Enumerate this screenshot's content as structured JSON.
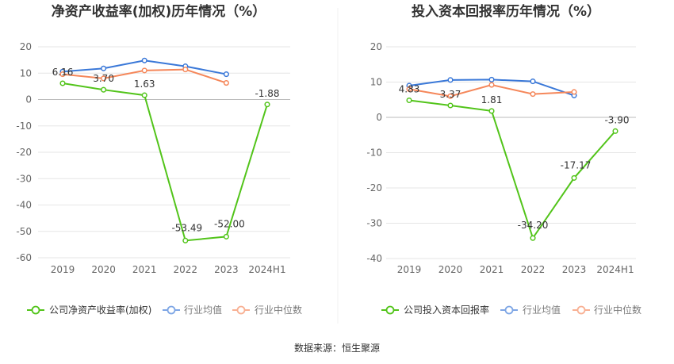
{
  "source": "数据来源：恒生聚源",
  "colors": {
    "company": "#52c41a",
    "industry_avg": "#3a78d8",
    "industry_median": "#f5875a",
    "grid": "#e6e6e6"
  },
  "chart_data": [
    {
      "type": "line",
      "title": "净资产收益率(加权)历年情况（%）",
      "categories": [
        "2019",
        "2020",
        "2021",
        "2022",
        "2023",
        "2024H1"
      ],
      "ylim": [
        -60,
        20
      ],
      "yticks": [
        20,
        10,
        0,
        -10,
        -20,
        -30,
        -40,
        -50,
        -60
      ],
      "grid": true,
      "legend_position": "bottom",
      "series": [
        {
          "name": "公司净资产收益率(加权)",
          "color": "#52c41a",
          "values": [
            6.16,
            3.7,
            1.63,
            -53.49,
            -52.0,
            -1.88
          ],
          "labels": [
            "6.16",
            "3.70",
            "1.63",
            "-53.49",
            "-52.00",
            "-1.88"
          ]
        },
        {
          "name": "行业均值",
          "color": "#3a78d8",
          "values": [
            10.6,
            11.8,
            14.8,
            12.6,
            9.6,
            null
          ]
        },
        {
          "name": "行业中位数",
          "color": "#f5875a",
          "values": [
            9.6,
            8.0,
            11.0,
            11.4,
            6.3,
            null
          ]
        }
      ]
    },
    {
      "type": "line",
      "title": "投入资本回报率历年情况（%）",
      "categories": [
        "2019",
        "2020",
        "2021",
        "2022",
        "2023",
        "2024H1"
      ],
      "ylim": [
        -40,
        20
      ],
      "yticks": [
        20,
        10,
        0,
        -10,
        -20,
        -30,
        -40
      ],
      "grid": true,
      "legend_position": "bottom",
      "series": [
        {
          "name": "公司投入资本回报率",
          "color": "#52c41a",
          "values": [
            4.83,
            3.37,
            1.81,
            -34.2,
            -17.17,
            -3.9
          ],
          "labels": [
            "4.83",
            "3.37",
            "1.81",
            "-34.20",
            "-17.17",
            "-3.90"
          ]
        },
        {
          "name": "行业均值",
          "color": "#3a78d8",
          "values": [
            9.0,
            10.6,
            10.7,
            10.2,
            6.2,
            null
          ]
        },
        {
          "name": "行业中位数",
          "color": "#f5875a",
          "values": [
            8.0,
            6.0,
            9.2,
            6.6,
            7.2,
            null
          ]
        }
      ]
    }
  ]
}
